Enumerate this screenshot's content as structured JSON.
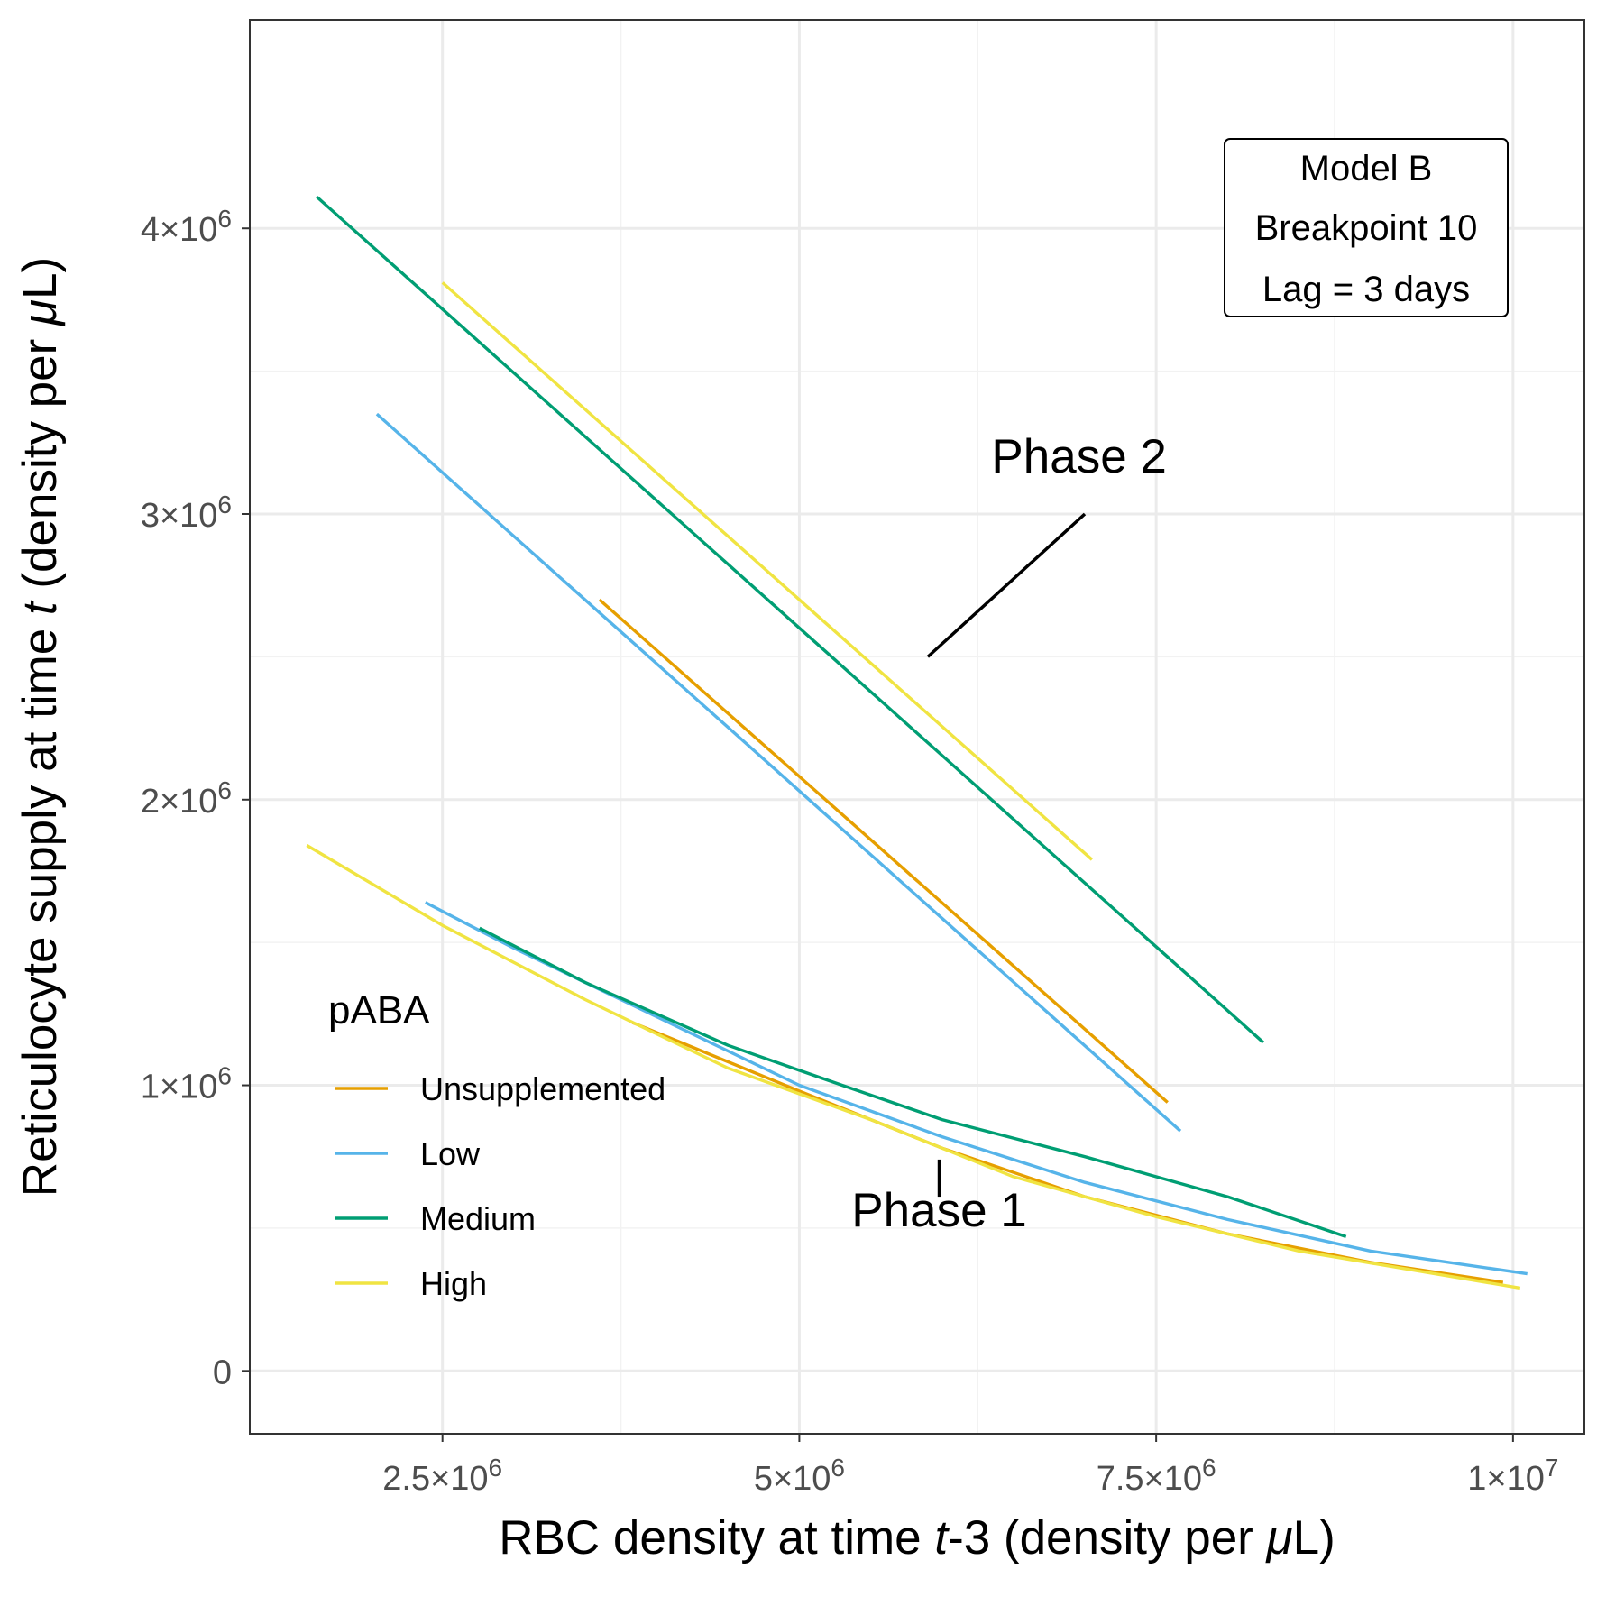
{
  "chart_data": {
    "type": "line",
    "xlabel": {
      "prefix": "RBC density at time ",
      "var": "t",
      "suffix": "-3 (density per ",
      "mu": "μ",
      "unit": "L)"
    },
    "ylabel": {
      "prefix": "Reticulocyte supply at time ",
      "var": "t",
      "suffix": " (density per ",
      "mu": "μ",
      "unit": "L)"
    },
    "xlim": [
      1150000,
      10500000
    ],
    "ylim": [
      -220000,
      4730000
    ],
    "x_ticks": [
      {
        "value": 2500000,
        "mantissa": "2.5",
        "times": "×10",
        "exp": "6"
      },
      {
        "value": 5000000,
        "mantissa": "5",
        "times": "×10",
        "exp": "6"
      },
      {
        "value": 7500000,
        "mantissa": "7.5",
        "times": "×10",
        "exp": "6"
      },
      {
        "value": 10000000,
        "mantissa": "1",
        "times": "×10",
        "exp": "7"
      }
    ],
    "y_ticks": [
      {
        "value": 0,
        "mantissa": "0",
        "times": "",
        "exp": ""
      },
      {
        "value": 1000000,
        "mantissa": "1",
        "times": "×10",
        "exp": "6"
      },
      {
        "value": 2000000,
        "mantissa": "2",
        "times": "×10",
        "exp": "6"
      },
      {
        "value": 3000000,
        "mantissa": "3",
        "times": "×10",
        "exp": "6"
      },
      {
        "value": 4000000,
        "mantissa": "4",
        "times": "×10",
        "exp": "6"
      }
    ],
    "grid": true,
    "legend": {
      "title": "pABA",
      "placement": "bottom-left",
      "entries": [
        {
          "name": "Unsupplemented",
          "color": "#E69F00"
        },
        {
          "name": "Low",
          "color": "#56B4E9"
        },
        {
          "name": "Medium",
          "color": "#009E73"
        },
        {
          "name": "High",
          "color": "#F0E442"
        }
      ]
    },
    "series": [
      {
        "name": "Unsupplemented",
        "phase": 1,
        "color": "#E69F00",
        "x": [
          3830000,
          5000000,
          6000000,
          7000000,
          8000000,
          9000000,
          9930000
        ],
        "y": [
          1220000,
          980000,
          780000,
          610000,
          480000,
          380000,
          310000
        ]
      },
      {
        "name": "Unsupplemented",
        "phase": 2,
        "color": "#E69F00",
        "x": [
          3600000,
          7580000
        ],
        "y": [
          2700000,
          940000
        ]
      },
      {
        "name": "Low",
        "phase": 1,
        "color": "#56B4E9",
        "x": [
          2380000,
          3000000,
          4000000,
          5000000,
          6000000,
          7000000,
          8000000,
          9000000,
          10100000
        ],
        "y": [
          1640000,
          1480000,
          1240000,
          1000000,
          820000,
          660000,
          530000,
          420000,
          340000
        ]
      },
      {
        "name": "Low",
        "phase": 2,
        "color": "#56B4E9",
        "x": [
          2040000,
          7670000
        ],
        "y": [
          3350000,
          840000
        ]
      },
      {
        "name": "Medium",
        "phase": 1,
        "color": "#009E73",
        "x": [
          2760000,
          3500000,
          4500000,
          5300000,
          6000000,
          7000000,
          8000000,
          8830000
        ],
        "y": [
          1550000,
          1360000,
          1140000,
          1000000,
          880000,
          750000,
          610000,
          470000
        ]
      },
      {
        "name": "Medium",
        "phase": 2,
        "color": "#009E73",
        "x": [
          1620000,
          8250000
        ],
        "y": [
          4110000,
          1150000
        ]
      },
      {
        "name": "High",
        "phase": 1,
        "color": "#F0E442",
        "x": [
          1550000,
          2500000,
          3500000,
          4500000,
          5500000,
          6500000,
          7500000,
          8500000,
          10050000
        ],
        "y": [
          1840000,
          1560000,
          1300000,
          1060000,
          880000,
          680000,
          540000,
          420000,
          290000
        ]
      },
      {
        "name": "High",
        "phase": 2,
        "color": "#F0E442",
        "x": [
          2500000,
          7050000
        ],
        "y": [
          3810000,
          1790000
        ]
      }
    ],
    "annotations": [
      {
        "label": "Phase 2",
        "text_x": 6960000,
        "text_y": 3190000,
        "seg_from": [
          7000000,
          3000000
        ],
        "seg_to": [
          5900000,
          2500000
        ]
      },
      {
        "label": "Phase 1",
        "text_x": 5980000,
        "text_y": 550000,
        "seg_from": [
          5980000,
          740000
        ],
        "seg_to": [
          5980000,
          610000
        ]
      }
    ],
    "info_box": {
      "lines": [
        "Model B",
        "Breakpoint 10",
        "Lag = 3 days"
      ],
      "placement": "top-right"
    }
  }
}
